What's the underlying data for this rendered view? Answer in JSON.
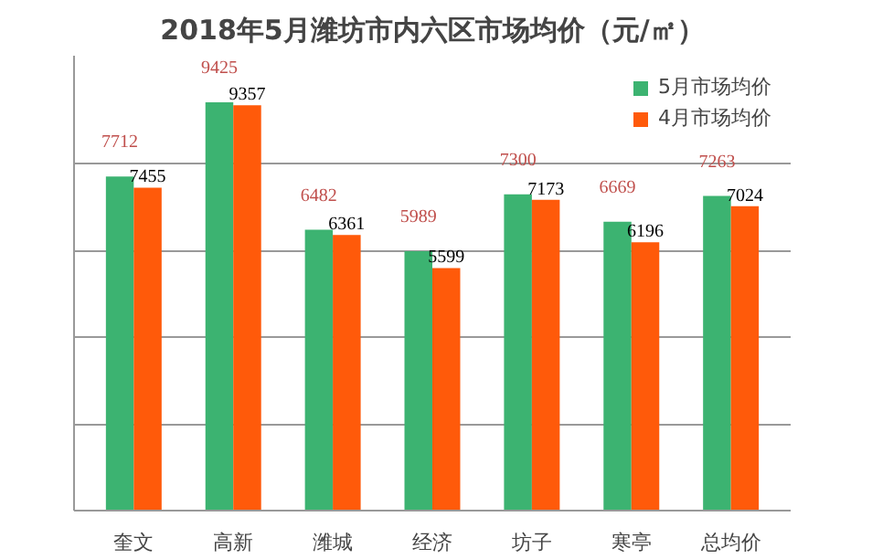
{
  "chart_data": {
    "type": "bar",
    "title": "2018年5月潍坊市内六区市场均价（元/㎡）",
    "categories": [
      "奎文",
      "高新",
      "潍城",
      "经济",
      "坊子",
      "寒亭",
      "总均价"
    ],
    "series": [
      {
        "name": "5月市场均价",
        "color": "#3cb371",
        "values": [
          7712,
          9425,
          6482,
          5989,
          7300,
          6669,
          7263
        ]
      },
      {
        "name": "4月市场均价",
        "color": "#ff5a0a",
        "values": [
          7455,
          9357,
          6361,
          5599,
          7173,
          6196,
          7024
        ]
      }
    ],
    "ylim": [
      0,
      10500
    ],
    "yticks": [
      {
        "value": 0,
        "label": null
      },
      {
        "value": 2000,
        "label": null
      },
      {
        "value": 4000,
        "label": null
      },
      {
        "value": 6000,
        "label": null
      },
      {
        "value": 8000,
        "label": null
      }
    ],
    "grid": "y",
    "legend": "top right",
    "data_labels": true,
    "tick_labels": "x"
  }
}
